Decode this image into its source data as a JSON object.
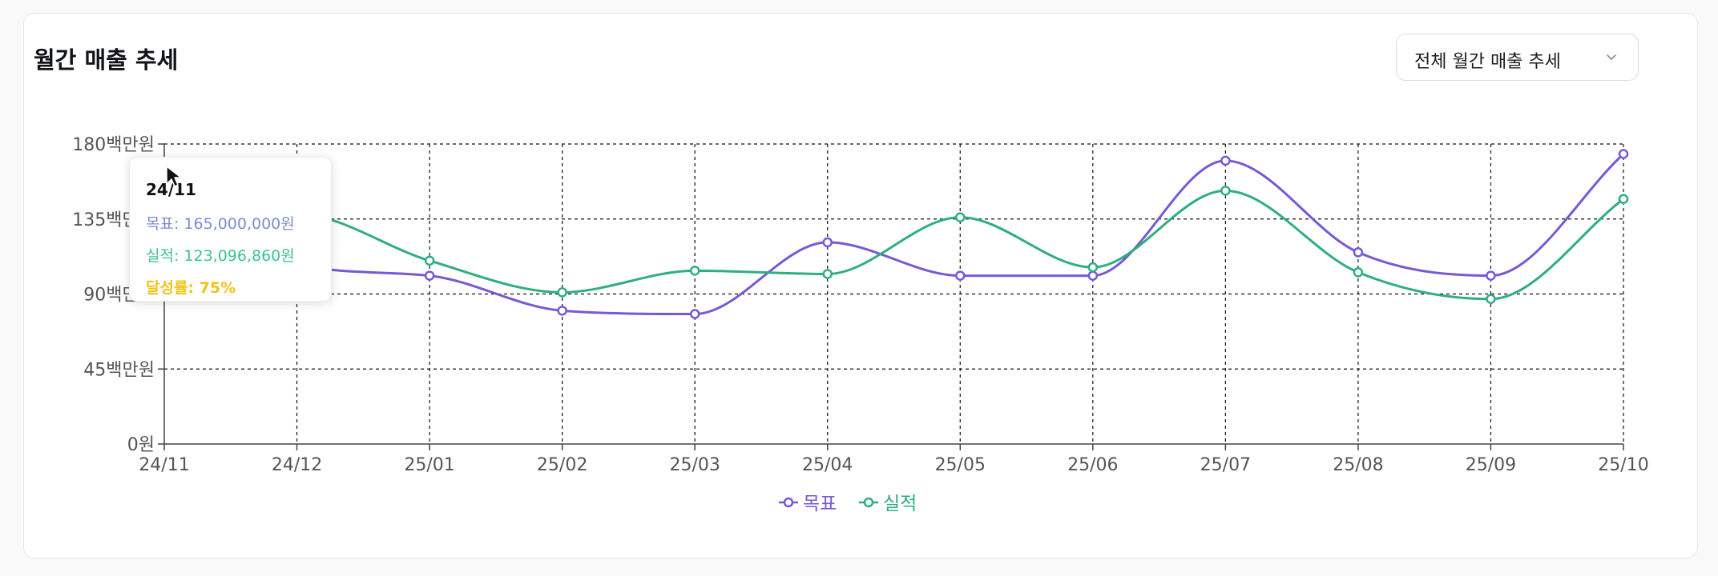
{
  "card": {
    "title": "월간 매출 추세",
    "period_select": {
      "selected": "전체 월간 매출 추세",
      "icon": "chevron-down-icon"
    }
  },
  "tooltip": {
    "date": "24/11",
    "goal_line": "목표: 165,000,000원",
    "actual_line": "실적: 123,096,860원",
    "rate_line": "달성률: 75%"
  },
  "colors": {
    "goal": "#7759d6",
    "actual": "#2fae7e",
    "axis": "#444444",
    "grid": "#111111"
  },
  "chart_data": {
    "type": "line",
    "categories": [
      "24/11",
      "24/12",
      "25/01",
      "25/02",
      "25/03",
      "25/04",
      "25/05",
      "25/06",
      "25/07",
      "25/08",
      "25/09",
      "25/10"
    ],
    "y_ticks": [
      0,
      45,
      90,
      135,
      180
    ],
    "y_tick_labels": [
      "0원",
      "45백만원",
      "90백만원",
      "135백만원",
      "180백만원"
    ],
    "ylim": [
      0,
      180
    ],
    "grid": true,
    "curve": "smooth",
    "legend_position": "bottom-center",
    "series": [
      {
        "name": "목표",
        "color": "#7759d6",
        "values": [
          165,
          108,
          101,
          80,
          78,
          121,
          101,
          101,
          170,
          115,
          101,
          174
        ]
      },
      {
        "name": "실적",
        "color": "#2fae7e",
        "values": [
          123.1,
          138,
          110,
          91,
          104,
          102,
          136,
          106,
          152,
          103,
          87,
          147
        ]
      }
    ]
  }
}
